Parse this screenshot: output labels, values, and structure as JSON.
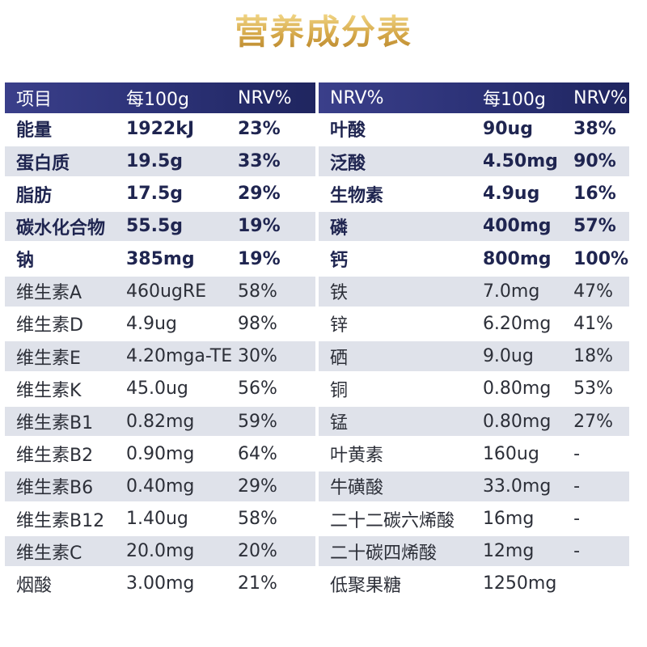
{
  "title": "营养成分表",
  "left": {
    "headers": [
      "项目",
      "每100g",
      "NRV%"
    ],
    "rows": [
      {
        "name": "能量",
        "amount": "1922kJ",
        "nrv": "23%"
      },
      {
        "name": "蛋白质",
        "amount": "19.5g",
        "nrv": "33%"
      },
      {
        "name": "脂肪",
        "amount": "17.5g",
        "nrv": "29%"
      },
      {
        "name": "碳水化合物",
        "amount": "55.5g",
        "nrv": "19%"
      },
      {
        "name": "钠",
        "amount": "385mg",
        "nrv": "19%"
      },
      {
        "name": "维生素A",
        "amount": "460ugRE",
        "nrv": "58%"
      },
      {
        "name": "维生素D",
        "amount": "4.9ug",
        "nrv": "98%"
      },
      {
        "name": "维生素E",
        "amount": "4.20mga-TE",
        "nrv": "30%"
      },
      {
        "name": "维生素K",
        "amount": "45.0ug",
        "nrv": "56%"
      },
      {
        "name": "维生素B1",
        "amount": "0.82mg",
        "nrv": "59%"
      },
      {
        "name": "维生素B2",
        "amount": "0.90mg",
        "nrv": "64%"
      },
      {
        "name": "维生素B6",
        "amount": "0.40mg",
        "nrv": "29%"
      },
      {
        "name": "维生素B12",
        "amount": "1.40ug",
        "nrv": "58%"
      },
      {
        "name": "维生素C",
        "amount": "20.0mg",
        "nrv": "20%"
      },
      {
        "name": "烟酸",
        "amount": "3.00mg",
        "nrv": "21%"
      }
    ]
  },
  "right": {
    "headers": [
      "NRV%",
      "每100g",
      "NRV%"
    ],
    "rows": [
      {
        "name": "叶酸",
        "amount": "90ug",
        "nrv": "38%"
      },
      {
        "name": "泛酸",
        "amount": "4.50mg",
        "nrv": "90%"
      },
      {
        "name": "生物素",
        "amount": "4.9ug",
        "nrv": "16%"
      },
      {
        "name": "磷",
        "amount": "400mg",
        "nrv": "57%"
      },
      {
        "name": "钙",
        "amount": "800mg",
        "nrv": "100%"
      },
      {
        "name": "铁",
        "amount": "7.0mg",
        "nrv": "47%"
      },
      {
        "name": "锌",
        "amount": "6.20mg",
        "nrv": "41%"
      },
      {
        "name": "硒",
        "amount": "9.0ug",
        "nrv": "18%"
      },
      {
        "name": "铜",
        "amount": "0.80mg",
        "nrv": "53%"
      },
      {
        "name": "锰",
        "amount": "0.80mg",
        "nrv": "27%"
      },
      {
        "name": "叶黄素",
        "amount": "160ug",
        "nrv": "-"
      },
      {
        "name": "牛磺酸",
        "amount": "33.0mg",
        "nrv": "-"
      },
      {
        "name": "二十二碳六烯酸",
        "amount": "16mg",
        "nrv": "-"
      },
      {
        "name": "二十碳四烯酸",
        "amount": "12mg",
        "nrv": "-"
      },
      {
        "name": "低聚果糖",
        "amount": "1250mg",
        "nrv": ""
      }
    ]
  }
}
